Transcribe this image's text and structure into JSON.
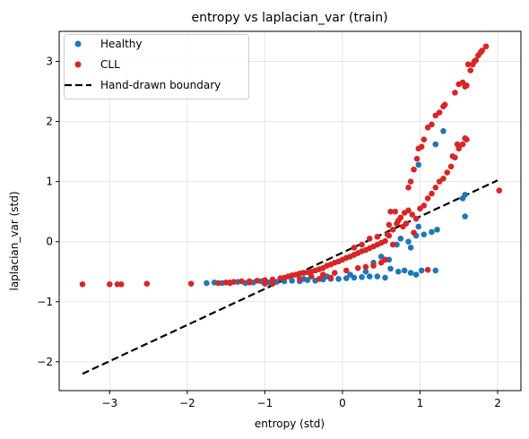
{
  "chart_data": {
    "type": "scatter",
    "title": "entropy vs laplacian_var (train)",
    "xlabel": "entropy (std)",
    "ylabel": "laplacian_var (std)",
    "xlim": [
      -3.65,
      2.3
    ],
    "ylim": [
      -2.48,
      3.5
    ],
    "xticks": [
      -3,
      -2,
      -1,
      0,
      1,
      2
    ],
    "yticks": [
      -2,
      -1,
      0,
      1,
      2,
      3
    ],
    "xtick_labels": [
      "−3",
      "−2",
      "−1",
      "0",
      "1",
      "2"
    ],
    "ytick_labels": [
      "−2",
      "−1",
      "0",
      "1",
      "2",
      "3"
    ],
    "grid": true,
    "legend_position": "top-left",
    "series": [
      {
        "name": "Healthy",
        "color": "#1f77b4",
        "points": [
          [
            -1.75,
            -0.69
          ],
          [
            -1.65,
            -0.68
          ],
          [
            -1.55,
            -0.69
          ],
          [
            -1.45,
            -0.68
          ],
          [
            -1.35,
            -0.67
          ],
          [
            -1.25,
            -0.69
          ],
          [
            -1.15,
            -0.68
          ],
          [
            -1.05,
            -0.66
          ],
          [
            -0.95,
            -0.68
          ],
          [
            -0.85,
            -0.67
          ],
          [
            -0.75,
            -0.66
          ],
          [
            -0.65,
            -0.65
          ],
          [
            -0.55,
            -0.66
          ],
          [
            -0.45,
            -0.64
          ],
          [
            -0.35,
            -0.65
          ],
          [
            -0.25,
            -0.63
          ],
          [
            -0.15,
            -0.62
          ],
          [
            -0.05,
            -0.62
          ],
          [
            0.05,
            -0.61
          ],
          [
            0.15,
            -0.6
          ],
          [
            0.25,
            -0.59
          ],
          [
            0.35,
            -0.58
          ],
          [
            0.45,
            -0.58
          ],
          [
            0.55,
            -0.6
          ],
          [
            0.62,
            -0.45
          ],
          [
            0.72,
            -0.5
          ],
          [
            0.8,
            -0.48
          ],
          [
            0.88,
            -0.52
          ],
          [
            0.95,
            -0.55
          ],
          [
            1.02,
            -0.48
          ],
          [
            1.2,
            -0.48
          ],
          [
            0.7,
            -0.05
          ],
          [
            0.75,
            0.05
          ],
          [
            0.85,
            0.0
          ],
          [
            0.95,
            0.1
          ],
          [
            1.05,
            0.12
          ],
          [
            1.15,
            0.16
          ],
          [
            1.22,
            0.2
          ],
          [
            0.88,
            -0.1
          ],
          [
            0.5,
            -0.25
          ],
          [
            0.98,
            1.28
          ],
          [
            1.2,
            1.62
          ],
          [
            1.3,
            1.84
          ],
          [
            1.55,
            0.72
          ],
          [
            1.58,
            0.78
          ],
          [
            1.58,
            0.42
          ],
          [
            0.98,
            0.25
          ],
          [
            0.4,
            -0.35
          ],
          [
            -0.5,
            -0.62
          ],
          [
            0.1,
            -0.55
          ],
          [
            0.3,
            -0.5
          ],
          [
            -0.2,
            -0.58
          ],
          [
            0.6,
            -0.3
          ]
        ]
      },
      {
        "name": "CLL",
        "color": "#d62728",
        "points": [
          [
            -3.35,
            -0.71
          ],
          [
            -3.0,
            -0.71
          ],
          [
            -2.9,
            -0.71
          ],
          [
            -2.85,
            -0.71
          ],
          [
            -2.52,
            -0.7
          ],
          [
            -1.95,
            -0.7
          ],
          [
            -1.6,
            -0.69
          ],
          [
            -1.5,
            -0.68
          ],
          [
            -1.4,
            -0.67
          ],
          [
            -1.3,
            -0.66
          ],
          [
            -1.2,
            -0.66
          ],
          [
            -1.1,
            -0.65
          ],
          [
            -1.0,
            -0.64
          ],
          [
            -0.9,
            -0.63
          ],
          [
            -0.8,
            -0.61
          ],
          [
            -0.75,
            -0.6
          ],
          [
            -0.7,
            -0.58
          ],
          [
            -0.65,
            -0.56
          ],
          [
            -0.6,
            -0.55
          ],
          [
            -0.55,
            -0.53
          ],
          [
            -0.5,
            -0.52
          ],
          [
            -0.45,
            -0.51
          ],
          [
            -0.4,
            -0.5
          ],
          [
            -0.35,
            -0.48
          ],
          [
            -0.3,
            -0.46
          ],
          [
            -0.25,
            -0.44
          ],
          [
            -0.2,
            -0.4
          ],
          [
            -0.15,
            -0.38
          ],
          [
            -0.1,
            -0.35
          ],
          [
            -0.05,
            -0.33
          ],
          [
            0.0,
            -0.3
          ],
          [
            0.05,
            -0.27
          ],
          [
            0.1,
            -0.25
          ],
          [
            0.15,
            -0.22
          ],
          [
            0.2,
            -0.19
          ],
          [
            0.25,
            -0.16
          ],
          [
            0.3,
            -0.14
          ],
          [
            0.35,
            -0.11
          ],
          [
            0.4,
            -0.08
          ],
          [
            0.45,
            -0.05
          ],
          [
            0.5,
            -0.02
          ],
          [
            0.55,
            0.01
          ],
          [
            -0.55,
            -0.62
          ],
          [
            -0.4,
            -0.58
          ],
          [
            -0.25,
            -0.55
          ],
          [
            -0.1,
            -0.52
          ],
          [
            0.05,
            -0.48
          ],
          [
            0.2,
            -0.44
          ],
          [
            0.3,
            -0.42
          ],
          [
            0.4,
            -0.4
          ],
          [
            0.5,
            -0.35
          ],
          [
            0.55,
            -0.3
          ],
          [
            0.6,
            0.1
          ],
          [
            0.65,
            0.2
          ],
          [
            0.7,
            0.3
          ],
          [
            0.75,
            0.4
          ],
          [
            0.8,
            0.48
          ],
          [
            0.85,
            0.52
          ],
          [
            0.9,
            0.45
          ],
          [
            0.95,
            0.38
          ],
          [
            1.0,
            0.55
          ],
          [
            1.05,
            0.6
          ],
          [
            1.1,
            0.72
          ],
          [
            1.15,
            0.8
          ],
          [
            1.2,
            0.9
          ],
          [
            1.25,
            1.0
          ],
          [
            1.3,
            1.05
          ],
          [
            1.35,
            1.15
          ],
          [
            1.4,
            1.25
          ],
          [
            1.45,
            1.4
          ],
          [
            1.5,
            1.55
          ],
          [
            1.55,
            1.62
          ],
          [
            1.6,
            1.7
          ],
          [
            0.72,
            0.35
          ],
          [
            0.82,
            0.3
          ],
          [
            0.62,
            0.5
          ],
          [
            0.68,
            0.5
          ],
          [
            0.85,
            0.9
          ],
          [
            0.88,
            1.0
          ],
          [
            0.92,
            1.2
          ],
          [
            0.96,
            1.38
          ],
          [
            0.98,
            1.55
          ],
          [
            1.02,
            1.58
          ],
          [
            1.05,
            1.7
          ],
          [
            1.1,
            1.9
          ],
          [
            1.15,
            1.95
          ],
          [
            1.2,
            2.1
          ],
          [
            1.25,
            2.15
          ],
          [
            1.3,
            2.25
          ],
          [
            1.32,
            2.28
          ],
          [
            1.45,
            2.48
          ],
          [
            1.5,
            2.62
          ],
          [
            1.55,
            2.65
          ],
          [
            1.6,
            2.6
          ],
          [
            1.65,
            2.85
          ],
          [
            1.68,
            2.95
          ],
          [
            1.7,
            3.0
          ],
          [
            1.72,
            3.02
          ],
          [
            1.75,
            3.1
          ],
          [
            1.78,
            3.15
          ],
          [
            1.8,
            3.18
          ],
          [
            1.85,
            3.25
          ],
          [
            2.02,
            0.85
          ],
          [
            1.1,
            -0.47
          ],
          [
            0.58,
            0.12
          ],
          [
            0.65,
            -0.05
          ],
          [
            0.45,
            0.08
          ],
          [
            0.35,
            0.05
          ],
          [
            0.25,
            -0.05
          ],
          [
            0.15,
            -0.1
          ],
          [
            -1.0,
            -0.7
          ],
          [
            -0.9,
            -0.7
          ],
          [
            -1.2,
            -0.68
          ],
          [
            -1.45,
            -0.69
          ],
          [
            -0.3,
            -0.62
          ],
          [
            -0.15,
            -0.6
          ],
          [
            0.6,
            0.28
          ],
          [
            0.78,
            0.25
          ],
          [
            0.92,
            0.15
          ],
          [
            1.48,
            1.62
          ],
          [
            1.58,
            1.72
          ],
          [
            1.62,
            2.95
          ],
          [
            1.58,
            2.58
          ],
          [
            1.42,
            1.42
          ]
        ]
      }
    ],
    "boundary": {
      "name": "Hand-drawn boundary",
      "color": "#000000",
      "x": [
        -3.35,
        2.0
      ],
      "y": [
        -2.2,
        1.02
      ]
    }
  }
}
